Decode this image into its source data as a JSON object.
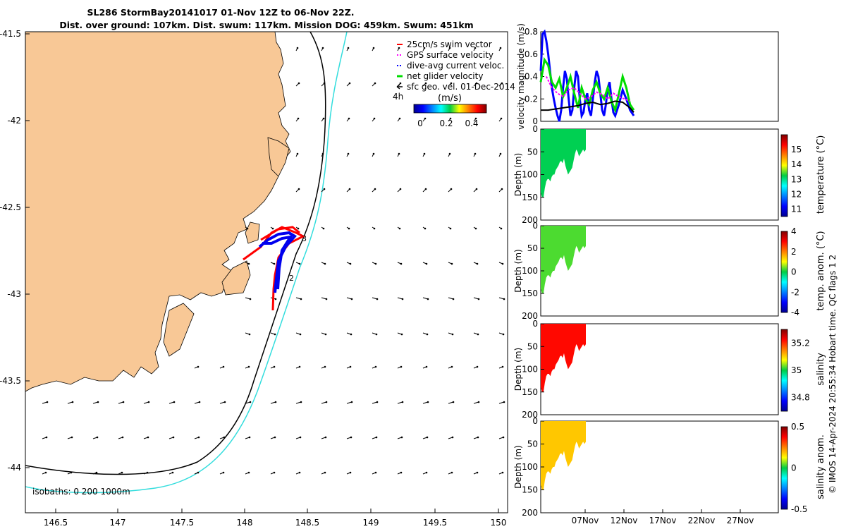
{
  "title": {
    "line1": "SL286 StormBay20141017 01-Nov 12Z to 06-Nov 22Z.",
    "line2": "Dist. over ground: 107km. Dist. swum: 117km. Mission DOG: 459km. Swum: 451km"
  },
  "map": {
    "x_ticks": [
      "146.5",
      "147",
      "147.5",
      "148",
      "148.5",
      "149",
      "149.5",
      "150"
    ],
    "y_ticks": [
      "-41.5",
      "-42",
      "-42.5",
      "-43",
      "-43.5",
      "-44"
    ],
    "isobaths_label": "isobaths: 0   200  1000m",
    "legend": [
      {
        "label": "25cm/s swim vector",
        "color": "#ff0000"
      },
      {
        "label": "GPS surface velocity",
        "color": "#ff00ff"
      },
      {
        "label": "dive-avg current veloc.",
        "color": "#0000ff"
      },
      {
        "label": "net glider velocity",
        "color": "#00dd00"
      },
      {
        "label": "sfc geo. vel. 01-Dec-2014",
        "color": "#000000"
      }
    ],
    "legend_extra": "4h",
    "colorbar_title": "(m/s)",
    "colorbar_ticks": [
      "0",
      "0.2",
      "0.4"
    ],
    "track_labels": [
      "3",
      "2"
    ],
    "colors": {
      "land": "#f8c896",
      "coast": "#000000",
      "isobath_200": "#000000",
      "isobath_1000": "#33dddd"
    }
  },
  "chart_data": [
    {
      "type": "line",
      "title": "",
      "ylabel": "velocity magnitude (m/s)",
      "ylim": [
        0,
        0.8
      ],
      "yticks": [
        "0",
        "0.2",
        "0.4",
        "0.6",
        "0.8"
      ],
      "series": [
        {
          "name": "dive-avg current veloc.",
          "color": "#0000ff",
          "x": [
            0,
            0.1,
            0.2,
            0.3,
            0.4,
            0.5,
            0.6,
            0.7,
            0.8,
            0.9,
            1.0,
            1.1,
            1.2,
            1.3,
            1.4,
            1.5,
            1.6,
            1.7,
            1.8,
            1.9,
            2.0,
            2.1,
            2.2,
            2.3,
            2.4,
            2.5,
            2.6,
            2.7,
            2.8,
            2.9,
            3.0,
            3.1,
            3.2,
            3.3,
            3.4,
            3.5,
            3.6,
            3.7,
            3.8,
            3.9,
            4.0,
            4.2,
            4.4,
            4.6,
            4.8,
            5.0
          ],
          "values": [
            0.45,
            0.78,
            0.8,
            0.72,
            0.6,
            0.45,
            0.3,
            0.2,
            0.12,
            0.05,
            0.0,
            0.1,
            0.3,
            0.45,
            0.38,
            0.2,
            0.05,
            0.1,
            0.3,
            0.45,
            0.4,
            0.2,
            0.05,
            0.08,
            0.2,
            0.25,
            0.1,
            0.05,
            0.2,
            0.35,
            0.45,
            0.4,
            0.25,
            0.1,
            0.05,
            0.15,
            0.3,
            0.35,
            0.2,
            0.08,
            0.05,
            0.15,
            0.28,
            0.2,
            0.1,
            0.05
          ]
        },
        {
          "name": "net glider velocity",
          "color": "#00dd00",
          "x": [
            0,
            0.2,
            0.4,
            0.6,
            0.8,
            1.0,
            1.2,
            1.4,
            1.6,
            1.8,
            2.0,
            2.2,
            2.4,
            2.6,
            2.8,
            3.0,
            3.2,
            3.4,
            3.6,
            3.8,
            4.0,
            4.2,
            4.4,
            4.6,
            4.8,
            5.0
          ],
          "values": [
            0.35,
            0.55,
            0.5,
            0.35,
            0.3,
            0.38,
            0.22,
            0.3,
            0.4,
            0.25,
            0.12,
            0.3,
            0.2,
            0.15,
            0.28,
            0.35,
            0.25,
            0.2,
            0.3,
            0.18,
            0.1,
            0.25,
            0.4,
            0.3,
            0.15,
            0.1
          ]
        },
        {
          "name": "GPS surface velocity",
          "color": "#ff00ff",
          "x": [
            0.3,
            0.6,
            0.9,
            1.2,
            1.5,
            1.8,
            2.1,
            2.4,
            2.7,
            3.0,
            3.3,
            3.6,
            3.9,
            4.2,
            4.5,
            4.8
          ],
          "values": [
            0.4,
            0.3,
            0.25,
            0.22,
            0.28,
            0.3,
            0.25,
            0.2,
            0.22,
            0.26,
            0.24,
            0.2,
            0.25,
            0.22,
            0.2,
            0.18
          ]
        },
        {
          "name": "sfc geo. vel. 01-Dec-2014",
          "color": "#000000",
          "x": [
            0,
            0.4,
            0.8,
            1.2,
            1.6,
            2.0,
            2.4,
            2.8,
            3.2,
            3.6,
            4.0,
            4.4,
            4.8,
            5.0
          ],
          "values": [
            0.1,
            0.1,
            0.11,
            0.12,
            0.13,
            0.14,
            0.16,
            0.17,
            0.15,
            0.16,
            0.18,
            0.17,
            0.12,
            0.08
          ]
        }
      ]
    },
    {
      "type": "heatmap",
      "ylabel": "Depth (m)",
      "ylim": [
        200,
        0
      ],
      "yticks": [
        "0",
        "50",
        "100",
        "150",
        "200"
      ],
      "colorbar_label": "temperature (°C)",
      "colorbar_ticks": [
        "11",
        "12",
        "13",
        "14",
        "15"
      ],
      "colorbar_range": [
        10.5,
        16
      ],
      "fill_value": 13.2,
      "bottom_depth_profile": [
        140,
        150,
        150,
        130,
        115,
        110,
        110,
        115,
        105,
        100,
        100,
        90,
        85,
        80,
        72,
        70,
        75,
        65,
        80,
        90,
        100,
        95,
        90,
        85,
        70,
        55,
        45,
        50,
        60,
        55,
        50,
        45,
        50,
        45
      ]
    },
    {
      "type": "heatmap",
      "ylabel": "Depth (m)",
      "ylim": [
        200,
        0
      ],
      "yticks": [
        "0",
        "50",
        "100",
        "150",
        "200"
      ],
      "colorbar_label": "temp. anom. (°C)",
      "colorbar_ticks": [
        "-4",
        "-2",
        "0",
        "2",
        "4"
      ],
      "colorbar_range": [
        -4,
        4
      ],
      "fill_value": 0.3,
      "bottom_depth_profile": [
        140,
        150,
        150,
        130,
        115,
        110,
        110,
        115,
        105,
        100,
        100,
        90,
        85,
        80,
        72,
        70,
        75,
        65,
        80,
        90,
        100,
        95,
        90,
        85,
        70,
        55,
        45,
        50,
        60,
        55,
        50,
        45,
        50,
        45
      ]
    },
    {
      "type": "heatmap",
      "ylabel": "Depth (m)",
      "ylim": [
        200,
        0
      ],
      "yticks": [
        "0",
        "50",
        "100",
        "150",
        "200"
      ],
      "colorbar_label": "salinity",
      "colorbar_ticks": [
        "34.8",
        "35",
        "35.2"
      ],
      "colorbar_range": [
        34.7,
        35.3
      ],
      "fill_value": 35.22,
      "bottom_depth_profile": [
        140,
        150,
        150,
        130,
        115,
        110,
        110,
        115,
        105,
        100,
        100,
        90,
        85,
        80,
        72,
        70,
        75,
        65,
        80,
        90,
        100,
        95,
        90,
        85,
        70,
        55,
        45,
        50,
        60,
        55,
        50,
        45,
        50,
        45
      ]
    },
    {
      "type": "heatmap",
      "ylabel": "Depth (m)",
      "ylim": [
        200,
        0
      ],
      "yticks": [
        "0",
        "50",
        "100",
        "150",
        "200"
      ],
      "xticks": [
        "07Nov",
        "12Nov",
        "17Nov",
        "22Nov",
        "27Nov"
      ],
      "colorbar_label": "salinity anom.",
      "colorbar_ticks": [
        "-0.5",
        "0",
        "0.5"
      ],
      "colorbar_range": [
        -0.5,
        0.5
      ],
      "fill_value": 0.18,
      "bottom_depth_profile": [
        140,
        150,
        150,
        130,
        115,
        110,
        110,
        115,
        105,
        100,
        100,
        90,
        85,
        80,
        72,
        70,
        75,
        65,
        80,
        90,
        100,
        95,
        90,
        85,
        70,
        55,
        45,
        50,
        60,
        55,
        50,
        45,
        50,
        45
      ]
    }
  ],
  "footer": "© IMOS 14-Apr-2024 20:55:34 Hobart time. QC flags 1  2"
}
